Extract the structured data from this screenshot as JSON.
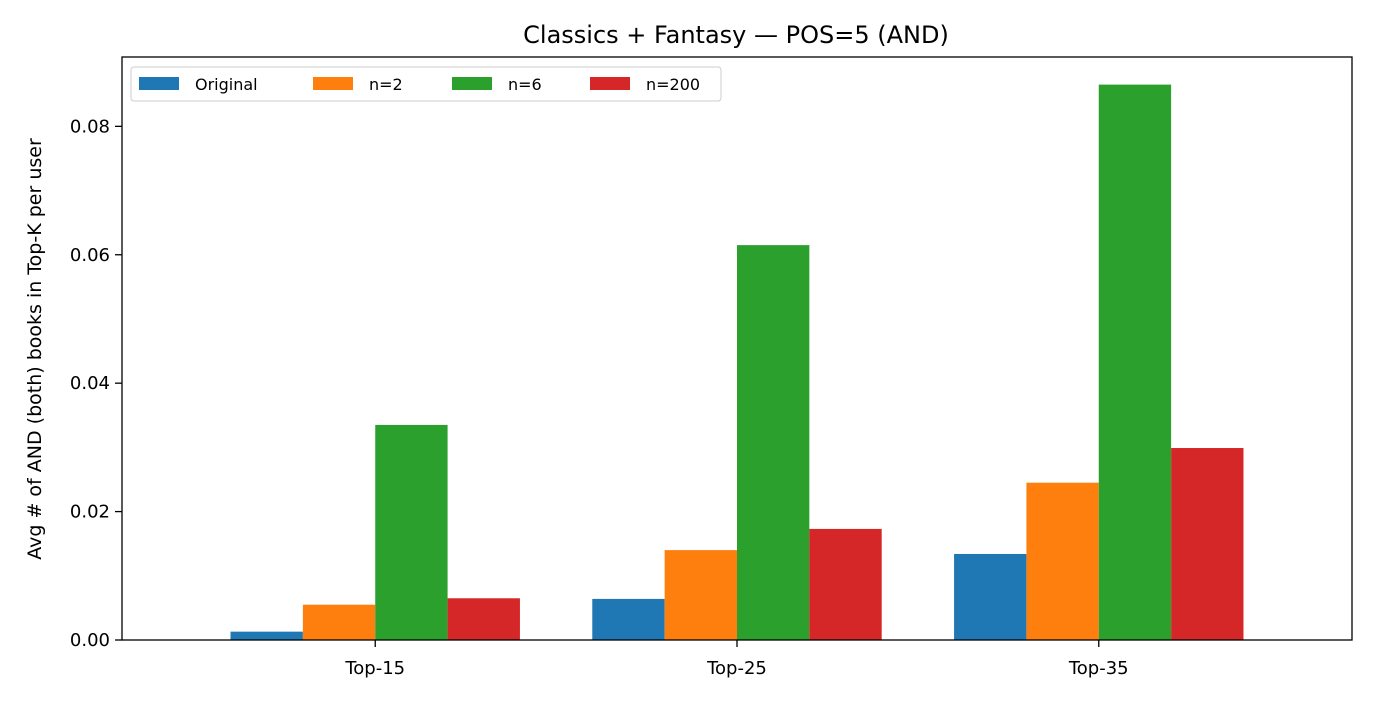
{
  "chart_data": {
    "type": "bar",
    "title": "Classics + Fantasy — POS=5 (AND)",
    "xlabel": "",
    "ylabel": "Avg # of AND (both) books in Top-K per user",
    "categories": [
      "Top-15",
      "Top-25",
      "Top-35"
    ],
    "ylim": [
      0,
      0.0908
    ],
    "yticks": [
      0.0,
      0.02,
      0.04,
      0.06,
      0.08
    ],
    "ytick_labels": [
      "0.00",
      "0.02",
      "0.04",
      "0.06",
      "0.08"
    ],
    "grid": false,
    "legend_position": "top-left",
    "series": [
      {
        "name": "Original",
        "color": "#1f77b4",
        "values": [
          0.0013,
          0.0064,
          0.0134
        ]
      },
      {
        "name": "n=2",
        "color": "#ff7f0e",
        "values": [
          0.0055,
          0.014,
          0.0245
        ]
      },
      {
        "name": "n=6",
        "color": "#2ca02c",
        "values": [
          0.0335,
          0.0615,
          0.0865
        ]
      },
      {
        "name": "n=200",
        "color": "#d62728",
        "values": [
          0.0065,
          0.0173,
          0.0299
        ]
      }
    ]
  }
}
